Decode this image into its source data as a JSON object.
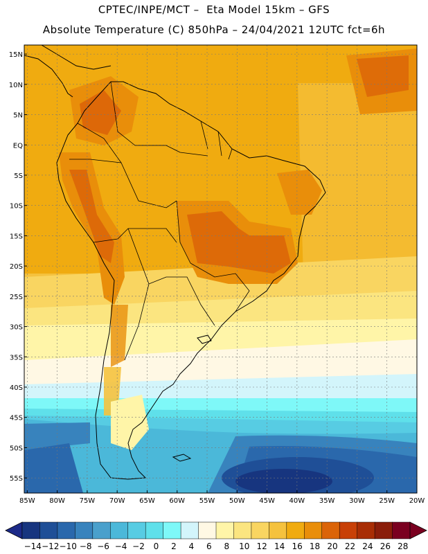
{
  "header": {
    "line1": "CPTEC/INPE/MCT –  Eta Model 15km – GFS",
    "line2": "Absolute Temperature (C) 850hPa – 24/04/2021 12UTC fct=6h"
  },
  "map": {
    "lat_labels": [
      "15N",
      "10N",
      "5N",
      "EQ",
      "5S",
      "10S",
      "15S",
      "20S",
      "25S",
      "30S",
      "35S",
      "40S",
      "45S",
      "50S",
      "55S"
    ],
    "lat_values": [
      15,
      10,
      5,
      0,
      -5,
      -10,
      -15,
      -20,
      -25,
      -30,
      -35,
      -40,
      -45,
      -50,
      -55
    ],
    "lon_labels": [
      "85W",
      "80W",
      "75W",
      "70W",
      "65W",
      "60W",
      "55W",
      "50W",
      "45W",
      "40W",
      "35W",
      "30W",
      "25W",
      "20W"
    ],
    "lon_values": [
      -85,
      -80,
      -75,
      -70,
      -65,
      -60,
      -55,
      -50,
      -45,
      -40,
      -35,
      -30,
      -25,
      -20
    ],
    "lon_range": [
      -85.5,
      -20
    ],
    "lat_range": [
      -57.5,
      16.5
    ]
  },
  "colorbar": {
    "labels": [
      "-14",
      "-12",
      "-10",
      "-8",
      "-6",
      "-4",
      "-2",
      "0",
      "2",
      "4",
      "6",
      "8",
      "10",
      "12",
      "14",
      "16",
      "18",
      "20",
      "22",
      "24",
      "26",
      "28"
    ],
    "colors": [
      "#17357f",
      "#1f4f97",
      "#2a68ac",
      "#3883bd",
      "#4aa0cc",
      "#4bb8d9",
      "#57cce3",
      "#5fe0ea",
      "#7ef8f8",
      "#d3f5fb",
      "#fff8e4",
      "#fff5a8",
      "#fbe580",
      "#f9d561",
      "#f5c23e",
      "#f0ab10",
      "#e98e0a",
      "#db6408",
      "#c84007",
      "#a82d05",
      "#8a1d0a",
      "#7a0020"
    ],
    "end_left_color": "#1c2a88",
    "end_right_color": "#7a0020"
  }
}
